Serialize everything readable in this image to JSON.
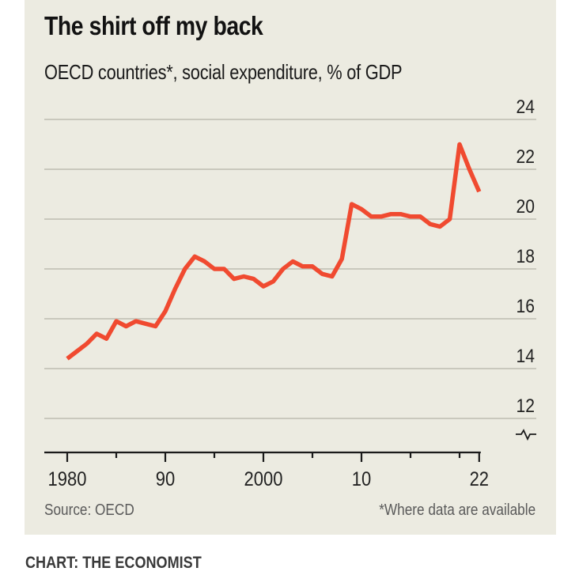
{
  "header": {
    "title": "The shirt off my back",
    "subtitle": "OECD countries*, social expenditure, % of GDP"
  },
  "footer": {
    "source": "Source: OECD",
    "footnote": "*Where data are available",
    "credit": "CHART: THE ECONOMIST"
  },
  "colors": {
    "line": "#f04a30",
    "background": "#ecebe1"
  },
  "chart_data": {
    "type": "line",
    "title": "The shirt off my back",
    "subtitle": "OECD countries*, social expenditure, % of GDP",
    "xlabel": "",
    "ylabel": "% of GDP",
    "xlim": [
      1980,
      2022
    ],
    "ylim": [
      12,
      24
    ],
    "y_axis_break": true,
    "y_axis_position": "right",
    "grid": true,
    "yticks": [
      24,
      22,
      20,
      18,
      16,
      14,
      12
    ],
    "ytick_labels": [
      "24",
      "22",
      "20",
      "18",
      "16",
      "14",
      "12"
    ],
    "xticks_major": [
      1980,
      1990,
      2000,
      2010,
      2022
    ],
    "xtick_labels": [
      "1980",
      "90",
      "2000",
      "10",
      "22"
    ],
    "xticks_minor": [
      1985,
      1995,
      2005,
      2015,
      2020
    ],
    "series": [
      {
        "name": "Social expenditure",
        "x": [
          1980,
          1981,
          1982,
          1983,
          1984,
          1985,
          1986,
          1987,
          1988,
          1989,
          1990,
          1991,
          1992,
          1993,
          1994,
          1995,
          1996,
          1997,
          1998,
          1999,
          2000,
          2001,
          2002,
          2003,
          2004,
          2005,
          2006,
          2007,
          2008,
          2009,
          2010,
          2011,
          2012,
          2013,
          2014,
          2015,
          2016,
          2017,
          2018,
          2019,
          2020,
          2021,
          2022
        ],
        "values": [
          14.4,
          14.7,
          15.0,
          15.4,
          15.2,
          15.9,
          15.7,
          15.9,
          15.8,
          15.7,
          16.3,
          17.2,
          18.0,
          18.5,
          18.3,
          18.0,
          18.0,
          17.6,
          17.7,
          17.6,
          17.3,
          17.5,
          18.0,
          18.3,
          18.1,
          18.1,
          17.8,
          17.7,
          18.4,
          20.6,
          20.4,
          20.1,
          20.1,
          20.2,
          20.2,
          20.1,
          20.1,
          19.8,
          19.7,
          20.0,
          23.0,
          22.0,
          21.1
        ]
      }
    ],
    "source": "Source: OECD",
    "footnote": "*Where data are available"
  }
}
